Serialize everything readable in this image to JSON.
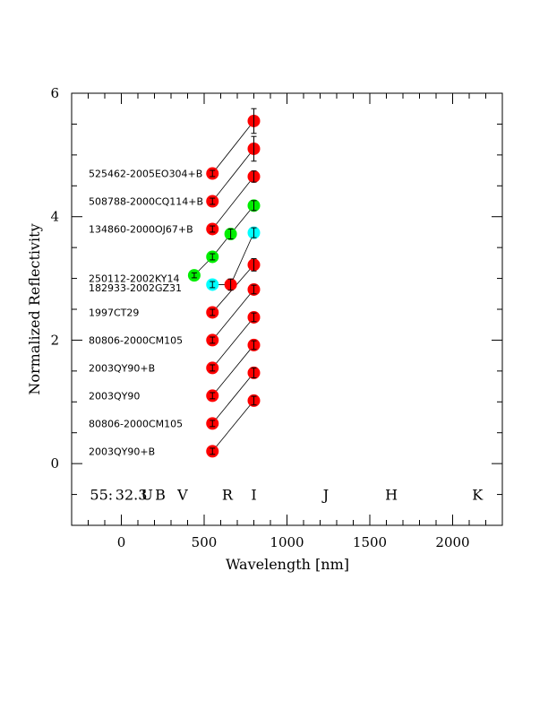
{
  "chart_data": {
    "type": "scatter",
    "xlabel": "Wavelength [nm]",
    "ylabel": "Normalized Reflectivity",
    "xlim": [
      -300,
      2300
    ],
    "ylim": [
      -1,
      6
    ],
    "x_ticks": [
      0,
      500,
      1000,
      1500,
      2000
    ],
    "x_tick_labels": [
      "0",
      "500",
      "1000",
      "1500",
      "2000"
    ],
    "y_ticks": [
      0,
      2,
      4,
      6
    ],
    "y_tick_labels": [
      "0",
      "2",
      "4",
      "6"
    ],
    "grid": false,
    "colors": {
      "red": "#ff0000",
      "green": "#00ee00",
      "cyan": "#00ffff",
      "line": "#000000"
    },
    "band_annotation": {
      "y": -0.5,
      "items": [
        {
          "text": "55:",
          "x": -120
        },
        {
          "text": "32.3",
          "x": 60
        },
        {
          "text": "U",
          "x": 155
        },
        {
          "text": "B",
          "x": 235
        },
        {
          "text": "V",
          "x": 370
        },
        {
          "text": "R",
          "x": 640
        },
        {
          "text": "I",
          "x": 800
        },
        {
          "text": "J",
          "x": 1235
        },
        {
          "text": "H",
          "x": 1630
        },
        {
          "text": "K",
          "x": 2150
        }
      ]
    },
    "series": [
      {
        "name": "2003QY90+B",
        "label_y": 0.2,
        "points": [
          {
            "x": 550,
            "y": 0.2,
            "err": 0.05,
            "color": "red"
          },
          {
            "x": 800,
            "y": 1.02,
            "err": 0.07,
            "color": "red"
          }
        ]
      },
      {
        "name": "80806-2000CM105",
        "label_y": 0.65,
        "points": [
          {
            "x": 550,
            "y": 0.65,
            "err": 0.05,
            "color": "red"
          },
          {
            "x": 800,
            "y": 1.47,
            "err": 0.08,
            "color": "red"
          }
        ]
      },
      {
        "name": "2003QY90",
        "label_y": 1.1,
        "points": [
          {
            "x": 550,
            "y": 1.1,
            "err": 0.05,
            "color": "red"
          },
          {
            "x": 800,
            "y": 1.92,
            "err": 0.07,
            "color": "red"
          }
        ]
      },
      {
        "name": "2003QY90+B",
        "label_y": 1.55,
        "points": [
          {
            "x": 550,
            "y": 1.55,
            "err": 0.05,
            "color": "red"
          },
          {
            "x": 800,
            "y": 2.37,
            "err": 0.07,
            "color": "red"
          }
        ]
      },
      {
        "name": "80806-2000CM105",
        "label_y": 2.0,
        "points": [
          {
            "x": 550,
            "y": 2.0,
            "err": 0.05,
            "color": "red"
          },
          {
            "x": 800,
            "y": 2.82,
            "err": 0.07,
            "color": "red"
          }
        ]
      },
      {
        "name": "1997CT29",
        "label_y": 2.45,
        "points": [
          {
            "x": 550,
            "y": 2.45,
            "err": 0.05,
            "color": "red"
          },
          {
            "x": 800,
            "y": 3.22,
            "err": 0.1,
            "color": "red"
          }
        ]
      },
      {
        "name": "182933-2002GZ31",
        "label_y": 2.85,
        "points": [
          {
            "x": 550,
            "y": 2.9,
            "err": 0.05,
            "color": "cyan"
          },
          {
            "x": 660,
            "y": 2.9,
            "err": 0.09,
            "color": "red"
          },
          {
            "x": 800,
            "y": 3.74,
            "err": 0.08,
            "color": "cyan"
          }
        ]
      },
      {
        "name": "250112-2002KY14",
        "label_y": 3.0,
        "points": [
          {
            "x": 440,
            "y": 3.05,
            "err": 0.04,
            "color": "green"
          },
          {
            "x": 550,
            "y": 3.35,
            "err": 0.05,
            "color": "green"
          },
          {
            "x": 660,
            "y": 3.72,
            "err": 0.08,
            "color": "green"
          },
          {
            "x": 800,
            "y": 4.18,
            "err": 0.08,
            "color": "green"
          }
        ]
      },
      {
        "name": "134860-2000OJ67+B",
        "label_y": 3.8,
        "points": [
          {
            "x": 550,
            "y": 3.8,
            "err": 0.05,
            "color": "red"
          },
          {
            "x": 800,
            "y": 4.65,
            "err": 0.09,
            "color": "red"
          }
        ]
      },
      {
        "name": "508788-2000CQ114+B",
        "label_y": 4.25,
        "points": [
          {
            "x": 550,
            "y": 4.25,
            "err": 0.05,
            "color": "red"
          },
          {
            "x": 800,
            "y": 5.1,
            "err": 0.2,
            "color": "red"
          }
        ]
      },
      {
        "name": "525462-2005EO304+B",
        "label_y": 4.7,
        "points": [
          {
            "x": 550,
            "y": 4.7,
            "err": 0.05,
            "color": "red"
          },
          {
            "x": 800,
            "y": 5.55,
            "err": 0.2,
            "color": "red"
          }
        ]
      }
    ]
  }
}
